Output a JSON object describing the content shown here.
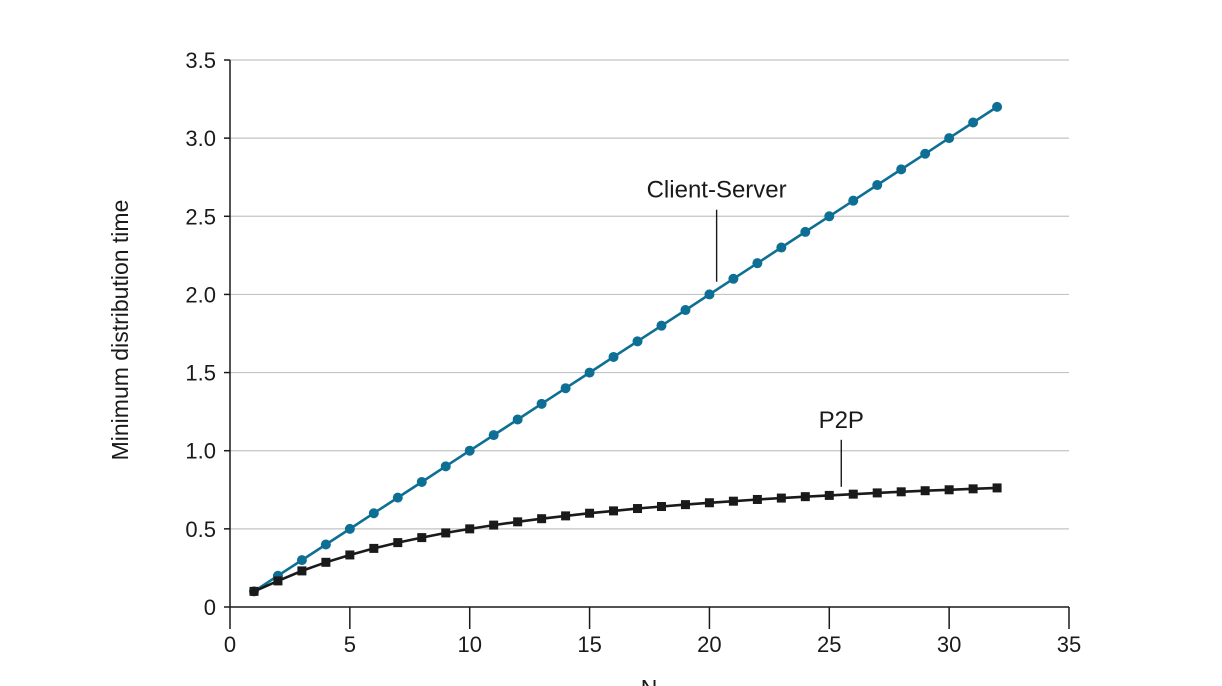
{
  "chart_data": {
    "type": "line",
    "xlabel": "N",
    "ylabel": "Minimum distribution time",
    "xlim": [
      0,
      35
    ],
    "ylim": [
      0,
      3.5
    ],
    "xticks": [
      "0",
      "5",
      "10",
      "15",
      "20",
      "25",
      "30",
      "35"
    ],
    "yticks": [
      "0",
      "0.5",
      "1.0",
      "1.5",
      "2.0",
      "2.5",
      "3.0",
      "3.5"
    ],
    "grid": "horizontal",
    "series": [
      {
        "name": "Client-Server",
        "color": "#0e6f95",
        "marker": "circle",
        "x": [
          1,
          2,
          3,
          4,
          5,
          6,
          7,
          8,
          9,
          10,
          11,
          12,
          13,
          14,
          15,
          16,
          17,
          18,
          19,
          20,
          21,
          22,
          23,
          24,
          25,
          26,
          27,
          28,
          29,
          30,
          31,
          32
        ],
        "values": [
          0.1,
          0.2,
          0.3,
          0.4,
          0.5,
          0.6,
          0.7,
          0.8,
          0.9,
          1.0,
          1.1,
          1.2,
          1.3,
          1.4,
          1.5,
          1.6,
          1.7,
          1.8,
          1.9,
          2.0,
          2.1,
          2.2,
          2.3,
          2.4,
          2.5,
          2.6,
          2.7,
          2.8,
          2.9,
          3.0,
          3.1,
          3.2
        ]
      },
      {
        "name": "P2P",
        "color": "#1a1a1a",
        "marker": "square",
        "x": [
          1,
          2,
          3,
          4,
          5,
          6,
          7,
          8,
          9,
          10,
          11,
          12,
          13,
          14,
          15,
          16,
          17,
          18,
          19,
          20,
          21,
          22,
          23,
          24,
          25,
          26,
          27,
          28,
          29,
          30,
          31,
          32
        ],
        "values": [
          0.1,
          0.167,
          0.231,
          0.286,
          0.333,
          0.375,
          0.412,
          0.444,
          0.474,
          0.5,
          0.524,
          0.545,
          0.565,
          0.583,
          0.6,
          0.615,
          0.63,
          0.643,
          0.655,
          0.667,
          0.677,
          0.688,
          0.697,
          0.706,
          0.714,
          0.722,
          0.73,
          0.737,
          0.744,
          0.75,
          0.756,
          0.762
        ]
      }
    ],
    "annotations": [
      {
        "text": "Client-Server",
        "series": 0,
        "at_x": 20.3
      },
      {
        "text": "P2P",
        "series": 1,
        "at_x": 25.5
      }
    ]
  }
}
